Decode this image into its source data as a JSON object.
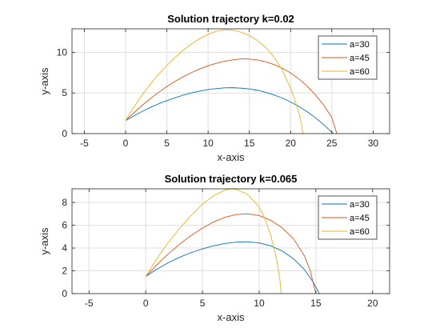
{
  "chart_data": [
    {
      "type": "line",
      "title": "Solution trajectory k=0.02",
      "xlabel": "x-axis",
      "ylabel": "y-axis",
      "xlim": [
        -6.5,
        32
      ],
      "ylim": [
        0,
        12.9
      ],
      "xticks": [
        -5,
        0,
        5,
        10,
        15,
        20,
        25,
        30
      ],
      "yticks": [
        0,
        5,
        10
      ],
      "grid": true,
      "legend_position": "top-right",
      "series": [
        {
          "name": "a=30",
          "color": "#0072BD",
          "points": [
            [
              0,
              1.6
            ],
            [
              1,
              2.18
            ],
            [
              2,
              2.73
            ],
            [
              3,
              3.22
            ],
            [
              4,
              3.67
            ],
            [
              5,
              4.06
            ],
            [
              6,
              4.41
            ],
            [
              7,
              4.74
            ],
            [
              8,
              5.01
            ],
            [
              9,
              5.24
            ],
            [
              10,
              5.42
            ],
            [
              11,
              5.55
            ],
            [
              12,
              5.63
            ],
            [
              13,
              5.65
            ],
            [
              14,
              5.59
            ],
            [
              15,
              5.5
            ],
            [
              16,
              5.33
            ],
            [
              17,
              5.08
            ],
            [
              18,
              4.76
            ],
            [
              19,
              4.37
            ],
            [
              20,
              3.9
            ],
            [
              21,
              3.35
            ],
            [
              22,
              2.7
            ],
            [
              23,
              1.95
            ],
            [
              24,
              1.1
            ],
            [
              25,
              0.15
            ],
            [
              25.15,
              0
            ]
          ]
        },
        {
          "name": "a=45",
          "color": "#D95319",
          "points": [
            [
              0,
              1.6
            ],
            [
              1,
              2.56
            ],
            [
              2,
              3.47
            ],
            [
              3,
              4.31
            ],
            [
              4,
              5.09
            ],
            [
              5,
              5.8
            ],
            [
              6,
              6.44
            ],
            [
              7,
              7.01
            ],
            [
              8,
              7.52
            ],
            [
              9,
              7.97
            ],
            [
              10,
              8.35
            ],
            [
              11,
              8.66
            ],
            [
              12,
              8.91
            ],
            [
              13,
              9.08
            ],
            [
              14,
              9.2
            ],
            [
              15,
              9.18
            ],
            [
              16,
              9.05
            ],
            [
              17,
              8.83
            ],
            [
              18,
              8.5
            ],
            [
              19,
              8.05
            ],
            [
              20,
              7.47
            ],
            [
              21,
              6.74
            ],
            [
              22,
              5.84
            ],
            [
              23,
              4.78
            ],
            [
              24,
              3.53
            ],
            [
              25,
              1.97
            ],
            [
              25.6,
              0
            ]
          ]
        },
        {
          "name": "a=60",
          "color": "#EDB120",
          "points": [
            [
              0,
              1.6
            ],
            [
              1,
              3.27
            ],
            [
              2,
              4.76
            ],
            [
              3,
              6.1
            ],
            [
              4,
              7.3
            ],
            [
              5,
              8.39
            ],
            [
              6,
              9.38
            ],
            [
              7,
              10.28
            ],
            [
              8,
              11.05
            ],
            [
              9,
              11.7
            ],
            [
              10,
              12.23
            ],
            [
              11,
              12.6
            ],
            [
              12,
              12.78
            ],
            [
              13,
              12.73
            ],
            [
              14,
              12.49
            ],
            [
              15,
              12.07
            ],
            [
              16,
              11.45
            ],
            [
              17,
              10.6
            ],
            [
              18,
              9.4
            ],
            [
              19,
              7.8
            ],
            [
              20,
              5.6
            ],
            [
              20.5,
              4.2
            ],
            [
              21,
              2.6
            ],
            [
              21.3,
              1.2
            ],
            [
              21.5,
              0
            ]
          ]
        }
      ]
    },
    {
      "type": "line",
      "title": "Solution trajectory k=0.065",
      "xlabel": "x-axis",
      "ylabel": "y-axis",
      "xlim": [
        -6.5,
        21.5
      ],
      "ylim": [
        0,
        9.2
      ],
      "xticks": [
        -5,
        0,
        5,
        10,
        15,
        20
      ],
      "yticks": [
        0,
        2,
        4,
        6,
        8
      ],
      "grid": true,
      "legend_position": "top-right",
      "series": [
        {
          "name": "a=30",
          "color": "#0072BD",
          "points": [
            [
              0,
              1.5
            ],
            [
              1,
              2.15
            ],
            [
              2,
              2.72
            ],
            [
              3,
              3.2
            ],
            [
              4,
              3.6
            ],
            [
              5,
              3.93
            ],
            [
              6,
              4.2
            ],
            [
              7,
              4.4
            ],
            [
              8,
              4.52
            ],
            [
              9,
              4.55
            ],
            [
              10,
              4.45
            ],
            [
              11,
              4.2
            ],
            [
              12,
              3.76
            ],
            [
              13,
              3.08
            ],
            [
              14,
              2.1
            ],
            [
              14.7,
              1.1
            ],
            [
              15.2,
              0.2
            ],
            [
              15.3,
              0
            ]
          ]
        },
        {
          "name": "a=45",
          "color": "#D95319",
          "points": [
            [
              0,
              1.5
            ],
            [
              1,
              2.55
            ],
            [
              2,
              3.5
            ],
            [
              3,
              4.35
            ],
            [
              4,
              5.1
            ],
            [
              5,
              5.75
            ],
            [
              6,
              6.3
            ],
            [
              7,
              6.7
            ],
            [
              8,
              6.95
            ],
            [
              9,
              7.0
            ],
            [
              10,
              6.85
            ],
            [
              11,
              6.45
            ],
            [
              12,
              5.8
            ],
            [
              13,
              4.85
            ],
            [
              14,
              3.3
            ],
            [
              14.5,
              2.0
            ],
            [
              14.9,
              0.4
            ],
            [
              15.0,
              0
            ]
          ]
        },
        {
          "name": "a=60",
          "color": "#EDB120",
          "points": [
            [
              0,
              1.5
            ],
            [
              1,
              3.1
            ],
            [
              2,
              4.5
            ],
            [
              3,
              5.75
            ],
            [
              4,
              6.85
            ],
            [
              5,
              7.85
            ],
            [
              6,
              8.6
            ],
            [
              7,
              9.1
            ],
            [
              7.5,
              9.2
            ],
            [
              8,
              9.15
            ],
            [
              9,
              8.7
            ],
            [
              10,
              7.6
            ],
            [
              10.5,
              6.6
            ],
            [
              11,
              5.2
            ],
            [
              11.5,
              3.2
            ],
            [
              11.8,
              1.5
            ],
            [
              11.95,
              0
            ]
          ]
        }
      ]
    }
  ]
}
